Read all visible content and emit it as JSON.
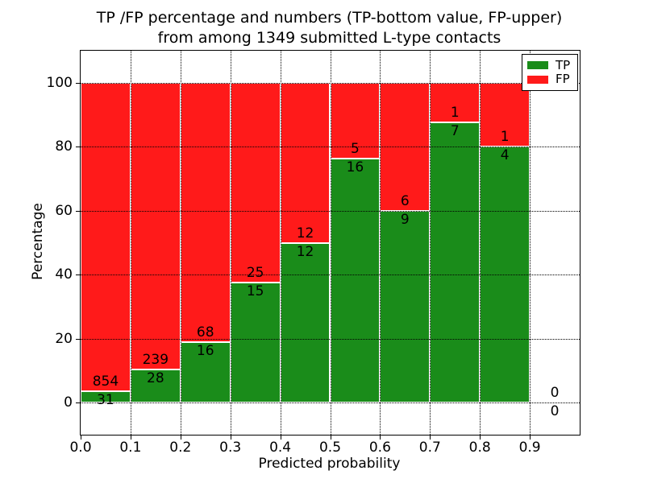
{
  "chart_data": {
    "type": "bar",
    "subtype": "stacked-percentage",
    "title_lines": [
      "TP /FP percentage and numbers (TP-bottom value, FP-upper)",
      "from among 1349 submitted L-type contacts"
    ],
    "xlabel": "Predicted probability",
    "ylabel": "Percentage",
    "total_submitted": 1349,
    "xlim": [
      0.0,
      1.0
    ],
    "ylim": [
      -10,
      110
    ],
    "bin_width": 0.1,
    "xticks": [
      "0.0",
      "0.1",
      "0.2",
      "0.3",
      "0.4",
      "0.5",
      "0.6",
      "0.7",
      "0.8",
      "0.9"
    ],
    "yticks": [
      0,
      20,
      40,
      60,
      80,
      100
    ],
    "grid": "dotted-black-on",
    "legend_position": "upper-right",
    "legend": {
      "entries": [
        {
          "label": "TP",
          "color": "#1a8c1a"
        },
        {
          "label": "FP",
          "color": "#ff1a1a"
        }
      ]
    },
    "bins": [
      {
        "x0": 0.0,
        "x1": 0.1,
        "tp": 31,
        "fp": 854,
        "tp_percent": 3.5
      },
      {
        "x0": 0.1,
        "x1": 0.2,
        "tp": 28,
        "fp": 239,
        "tp_percent": 10.5
      },
      {
        "x0": 0.2,
        "x1": 0.3,
        "tp": 16,
        "fp": 68,
        "tp_percent": 19.0
      },
      {
        "x0": 0.3,
        "x1": 0.4,
        "tp": 15,
        "fp": 25,
        "tp_percent": 37.5
      },
      {
        "x0": 0.4,
        "x1": 0.5,
        "tp": 12,
        "fp": 12,
        "tp_percent": 50.0
      },
      {
        "x0": 0.5,
        "x1": 0.6,
        "tp": 16,
        "fp": 5,
        "tp_percent": 76.2
      },
      {
        "x0": 0.6,
        "x1": 0.7,
        "tp": 9,
        "fp": 6,
        "tp_percent": 60.0
      },
      {
        "x0": 0.7,
        "x1": 0.8,
        "tp": 7,
        "fp": 1,
        "tp_percent": 87.5
      },
      {
        "x0": 0.8,
        "x1": 0.9,
        "tp": 4,
        "fp": 1,
        "tp_percent": 80.0
      },
      {
        "x0": 0.9,
        "x1": 1.0,
        "tp": 0,
        "fp": 0,
        "tp_percent": null
      }
    ]
  },
  "colors": {
    "tp_green": "#1a8c1a",
    "fp_red": "#ff1a1a",
    "grid": "#000000",
    "background": "#ffffff",
    "text": "#000000"
  }
}
